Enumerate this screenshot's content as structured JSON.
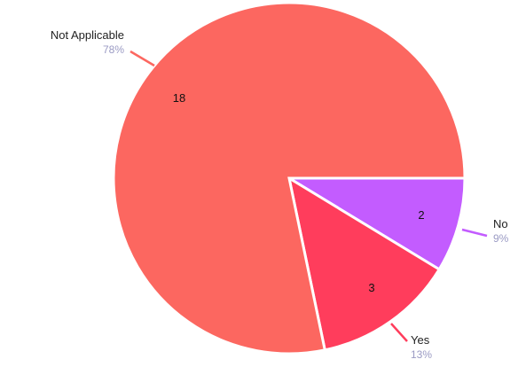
{
  "chart_data": {
    "type": "pie",
    "title": "",
    "slices": [
      {
        "label": "No",
        "value": 2,
        "percent": "9%",
        "color": "#c35cff"
      },
      {
        "label": "Yes",
        "value": 3,
        "percent": "13%",
        "color": "#ff3d5c"
      },
      {
        "label": "Not Applicable",
        "value": 18,
        "percent": "78%",
        "color": "#fc6760"
      }
    ]
  }
}
